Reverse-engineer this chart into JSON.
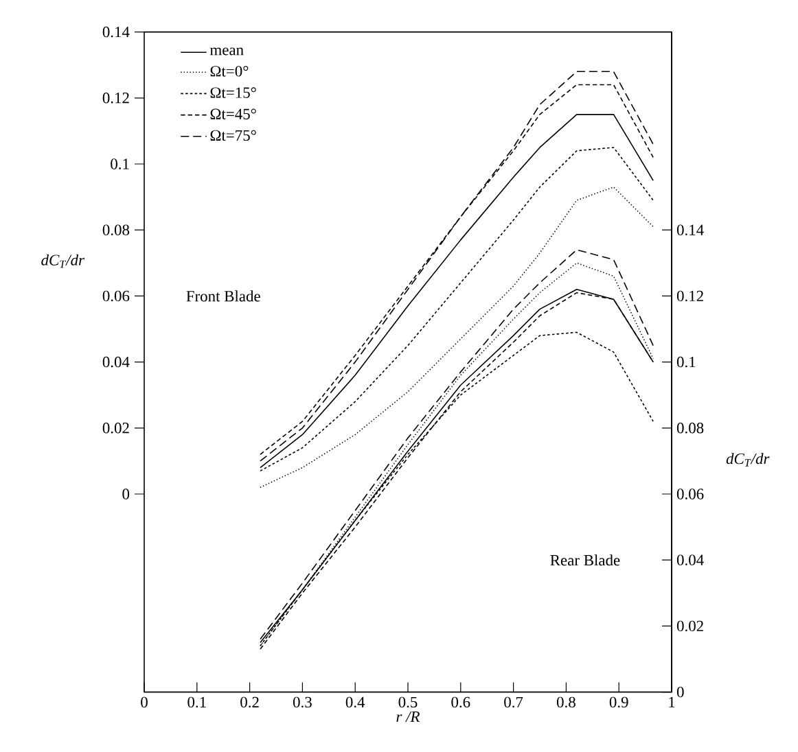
{
  "chart_data": {
    "type": "line",
    "xlabel": "r /R",
    "ylabel": "dC$_{T}$/dr",
    "y2label": "dC$_{T}$/dr",
    "annotations": [
      "Front Blade",
      "Rear Blade"
    ],
    "x": [
      0.22,
      0.3,
      0.4,
      0.5,
      0.6,
      0.7,
      0.75,
      0.82,
      0.89,
      0.965
    ],
    "xlim": [
      0,
      1
    ],
    "xticks": [
      0,
      0.1,
      0.2,
      0.3,
      0.4,
      0.5,
      0.6,
      0.7,
      0.8,
      0.9,
      1
    ],
    "ylim": [
      -0.06,
      0.14
    ],
    "yticks": [
      0,
      0.02,
      0.04,
      0.06,
      0.08,
      0.1,
      0.12,
      0.14
    ],
    "y2lim": [
      0,
      0.2
    ],
    "y2ticks": [
      0,
      0.02,
      0.04,
      0.06,
      0.08,
      0.1,
      0.12,
      0.14
    ],
    "legend": "top left",
    "grid": false,
    "marker": "none",
    "series": [
      {
        "name": "mean",
        "color": "#000000",
        "line_style": "solid",
        "values": [
          0.008,
          0.018,
          0.036,
          0.057,
          0.077,
          0.096,
          0.105,
          0.115,
          0.115,
          0.095
        ]
      },
      {
        "name": "Ωt=0°",
        "color": "#000000",
        "line_style": "dotted",
        "values": [
          0.002,
          0.008,
          0.018,
          0.031,
          0.047,
          0.063,
          0.073,
          0.089,
          0.093,
          0.081
        ]
      },
      {
        "name": "Ωt=15°",
        "color": "#000000",
        "line_style": "dashed",
        "values": [
          0.007,
          0.014,
          0.028,
          0.045,
          0.064,
          0.083,
          0.093,
          0.104,
          0.105,
          0.089
        ]
      },
      {
        "name": "Ωt=45°",
        "color": "#000000",
        "line_style": "dashed",
        "values": [
          0.012,
          0.022,
          0.042,
          0.063,
          0.084,
          0.104,
          0.115,
          0.124,
          0.124,
          0.102
        ]
      },
      {
        "name": "Ωt=75°",
        "color": "#000000",
        "line_style": "dashed",
        "values": [
          0.01,
          0.02,
          0.04,
          0.062,
          0.084,
          0.105,
          0.118,
          0.128,
          0.128,
          0.106
        ]
      },
      {
        "color": "#000000",
        "line_style": "solid",
        "axis": "y2",
        "values": [
          0.015,
          0.031,
          0.052,
          0.073,
          0.093,
          0.108,
          0.116,
          0.122,
          0.119,
          0.1
        ]
      },
      {
        "color": "#000000",
        "line_style": "dotted",
        "axis": "y2",
        "values": [
          0.014,
          0.031,
          0.053,
          0.075,
          0.096,
          0.113,
          0.121,
          0.13,
          0.126,
          0.101
        ]
      },
      {
        "color": "#000000",
        "line_style": "dashed",
        "axis": "y2",
        "values": [
          0.014,
          0.031,
          0.052,
          0.072,
          0.09,
          0.102,
          0.108,
          0.109,
          0.103,
          0.082
        ]
      },
      {
        "color": "#000000",
        "line_style": "dashed",
        "axis": "y2",
        "values": [
          0.013,
          0.03,
          0.05,
          0.071,
          0.091,
          0.106,
          0.114,
          0.121,
          0.119,
          0.1
        ]
      },
      {
        "color": "#000000",
        "line_style": "dashed",
        "axis": "y2",
        "values": [
          0.016,
          0.033,
          0.055,
          0.077,
          0.097,
          0.116,
          0.124,
          0.134,
          0.131,
          0.105
        ]
      }
    ]
  }
}
